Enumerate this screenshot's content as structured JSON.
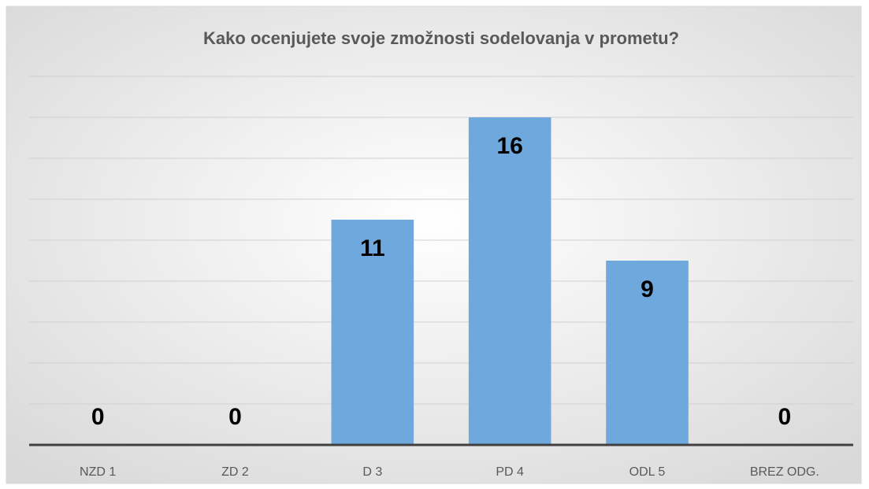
{
  "chart_data": {
    "type": "bar",
    "title": "Kako ocenjujete svoje zmožnosti sodelovanja v prometu?",
    "categories": [
      "NZD 1",
      "ZD 2",
      "D 3",
      "PD 4",
      "ODL 5",
      "BREZ ODG."
    ],
    "values": [
      0,
      0,
      11,
      16,
      9,
      0
    ],
    "color": "#6fa8dc",
    "ylim": [
      0,
      18
    ],
    "yticks": [
      0,
      2,
      4,
      6,
      8,
      10,
      12,
      14,
      16,
      18
    ],
    "grid": true
  }
}
